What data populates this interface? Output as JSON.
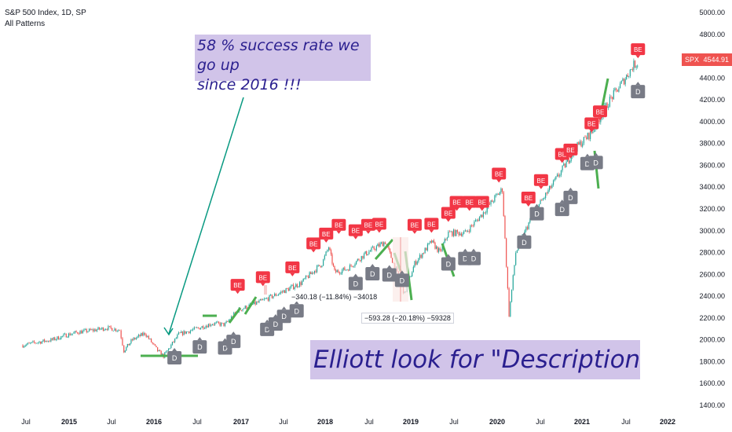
{
  "header": {
    "title": "S&P 500 Index, 1D, SP",
    "indicator": "All Patterns"
  },
  "annotations": {
    "top_note": [
      "58 % success rate we go up",
      "since 2016 !!!"
    ],
    "bottom_note": "Elliott look for \"Description below\"",
    "measure_1": "−340.18 (−11.84%) −34018",
    "measure_2": "−593.28 (−20.18%) −59328"
  },
  "price_tag": {
    "symbol": "SPX",
    "value": "4544.91"
  },
  "colors": {
    "bear_label": "#f23645",
    "bull_label": "#787b86",
    "up_candle": "#26a69a",
    "down_candle": "#ef5350",
    "trend_line": "#089981",
    "green_marks": "#4caf50",
    "note_bg": "#d1c4e9",
    "note_text": "#2a1f8f"
  },
  "chart_data": {
    "type": "line",
    "title": "S&P 500 Index, 1D, SP",
    "xlabel": "",
    "ylabel": "",
    "ylim": [
      1400,
      5100
    ],
    "x_ticks": [
      "Jul",
      "2015",
      "Jul",
      "2016",
      "Jul",
      "2017",
      "Jul",
      "2018",
      "Jul",
      "2019",
      "Jul",
      "2020",
      "Jul",
      "2021",
      "Jul",
      "2022"
    ],
    "y_ticks": [
      "1400.00",
      "1600.00",
      "1800.00",
      "2000.00",
      "2200.00",
      "2400.00",
      "2600.00",
      "2800.00",
      "3000.00",
      "3200.00",
      "3400.00",
      "3600.00",
      "3800.00",
      "4000.00",
      "4200.00",
      "4400.00",
      "4600.00",
      "4800.00",
      "5000.00"
    ],
    "grid": false,
    "series": [
      {
        "name": "SPX",
        "x": [
          2014.45,
          2014.6,
          2014.8,
          2014.95,
          2015.1,
          2015.3,
          2015.45,
          2015.6,
          2015.65,
          2015.75,
          2015.9,
          2016.05,
          2016.12,
          2016.3,
          2016.5,
          2016.7,
          2016.85,
          2017.0,
          2017.3,
          2017.5,
          2017.75,
          2018.0,
          2018.08,
          2018.15,
          2018.3,
          2018.5,
          2018.75,
          2018.85,
          2018.98,
          2019.1,
          2019.3,
          2019.4,
          2019.5,
          2019.7,
          2019.9,
          2020.05,
          2020.14,
          2020.22,
          2020.3,
          2020.5,
          2020.7,
          2020.9,
          2021.0,
          2021.2,
          2021.4,
          2021.6,
          2021.7,
          2021.76
        ],
        "values": [
          1950,
          1975,
          2000,
          2040,
          2070,
          2090,
          2110,
          2090,
          1900,
          2000,
          2060,
          1900,
          1850,
          2050,
          2100,
          2150,
          2140,
          2270,
          2360,
          2430,
          2520,
          2700,
          2850,
          2620,
          2650,
          2780,
          2900,
          2700,
          2420,
          2700,
          2900,
          2800,
          2980,
          2980,
          3150,
          3300,
          3380,
          2230,
          2800,
          3150,
          3380,
          3620,
          3750,
          3900,
          4180,
          4400,
          4520,
          4544.91
        ]
      }
    ],
    "pattern_labels": [
      {
        "text": "D",
        "x": 2016.25,
        "y": 1940
      },
      {
        "text": "D",
        "x": 2016.55,
        "y": 2040
      },
      {
        "text": "D",
        "x": 2016.85,
        "y": 2030
      },
      {
        "text": "D",
        "x": 2016.95,
        "y": 2090
      },
      {
        "text": "D",
        "x": 2017.35,
        "y": 2200
      },
      {
        "text": "D",
        "x": 2017.45,
        "y": 2250
      },
      {
        "text": "D",
        "x": 2017.55,
        "y": 2320
      },
      {
        "text": "D",
        "x": 2017.7,
        "y": 2370
      },
      {
        "text": "D",
        "x": 2018.4,
        "y": 2620
      },
      {
        "text": "D",
        "x": 2018.6,
        "y": 2710
      },
      {
        "text": "D",
        "x": 2018.8,
        "y": 2700
      },
      {
        "text": "D",
        "x": 2018.95,
        "y": 2650
      },
      {
        "text": "D",
        "x": 2019.5,
        "y": 2800
      },
      {
        "text": "D",
        "x": 2019.7,
        "y": 2850
      },
      {
        "text": "D",
        "x": 2019.8,
        "y": 2850
      },
      {
        "text": "D",
        "x": 2020.4,
        "y": 3000
      },
      {
        "text": "D",
        "x": 2020.55,
        "y": 3260
      },
      {
        "text": "D",
        "x": 2020.85,
        "y": 3300
      },
      {
        "text": "D",
        "x": 2020.95,
        "y": 3410
      },
      {
        "text": "D",
        "x": 2021.15,
        "y": 3720
      },
      {
        "text": "D",
        "x": 2021.25,
        "y": 3730
      },
      {
        "text": "D",
        "x": 2021.75,
        "y": 4380
      },
      {
        "text": "BE",
        "x": 2017.0,
        "y": 2400
      },
      {
        "text": "BE",
        "x": 2017.3,
        "y": 2470
      },
      {
        "text": "BE",
        "x": 2017.65,
        "y": 2560
      },
      {
        "text": "BE",
        "x": 2017.9,
        "y": 2780
      },
      {
        "text": "BE",
        "x": 2018.05,
        "y": 2870
      },
      {
        "text": "BE",
        "x": 2018.2,
        "y": 2950
      },
      {
        "text": "BE",
        "x": 2018.4,
        "y": 2900
      },
      {
        "text": "BE",
        "x": 2018.55,
        "y": 2950
      },
      {
        "text": "BE",
        "x": 2018.68,
        "y": 2960
      },
      {
        "text": "BE",
        "x": 2019.1,
        "y": 2950
      },
      {
        "text": "BE",
        "x": 2019.3,
        "y": 2960
      },
      {
        "text": "BE",
        "x": 2019.5,
        "y": 3060
      },
      {
        "text": "BE",
        "x": 2019.6,
        "y": 3160
      },
      {
        "text": "BE",
        "x": 2019.75,
        "y": 3160
      },
      {
        "text": "BE",
        "x": 2019.9,
        "y": 3160
      },
      {
        "text": "BE",
        "x": 2020.1,
        "y": 3420
      },
      {
        "text": "BE",
        "x": 2020.45,
        "y": 3200
      },
      {
        "text": "BE",
        "x": 2020.6,
        "y": 3360
      },
      {
        "text": "BE",
        "x": 2020.85,
        "y": 3600
      },
      {
        "text": "BE",
        "x": 2020.95,
        "y": 3640
      },
      {
        "text": "BE",
        "x": 2021.2,
        "y": 3880
      },
      {
        "text": "BE",
        "x": 2021.3,
        "y": 3990
      },
      {
        "text": "BE",
        "x": 2021.75,
        "y": 4560
      }
    ]
  }
}
